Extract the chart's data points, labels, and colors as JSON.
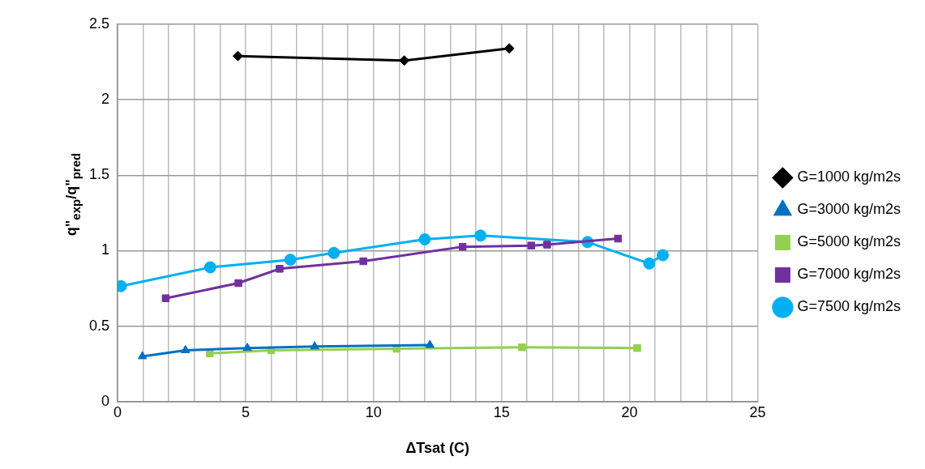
{
  "chart_data": {
    "type": "line",
    "xlabel": "ΔTsat (C)",
    "ylabel": "q\"$_{exp}$/q\"$_{pred}$",
    "xlim": [
      0,
      25
    ],
    "xticks": [
      0,
      {
        "value": 1,
        "label": null
      },
      {
        "value": 2,
        "label": null
      },
      {
        "value": 3,
        "label": null
      },
      {
        "value": 4,
        "label": null
      },
      5,
      {
        "value": 6,
        "label": null
      },
      {
        "value": 7,
        "label": null
      },
      {
        "value": 8,
        "label": null
      },
      {
        "value": 9,
        "label": null
      },
      10,
      {
        "value": 11,
        "label": null
      },
      {
        "value": 12,
        "label": null
      },
      {
        "value": 13,
        "label": null
      },
      {
        "value": 14,
        "label": null
      },
      15,
      {
        "value": 16,
        "label": null
      },
      {
        "value": 17,
        "label": null
      },
      {
        "value": 18,
        "label": null
      },
      {
        "value": 19,
        "label": null
      },
      20,
      {
        "value": 21,
        "label": null
      },
      {
        "value": 22,
        "label": null
      },
      {
        "value": 23,
        "label": null
      },
      {
        "value": 24,
        "label": null
      },
      25
    ],
    "ylim": [
      0,
      2.5
    ],
    "yticks": [
      0,
      0.5,
      1,
      1.5,
      2,
      2.5
    ],
    "grid": true,
    "legend": "right",
    "series": [
      {
        "name": "G=1000 kg/m2s",
        "color": "#000000",
        "marker": "diamond",
        "x": [
          4.7,
          11.2,
          15.3
        ],
        "values": [
          2.29,
          2.26,
          2.34
        ]
      },
      {
        "name": "G=3000 kg/m2s",
        "color": "#0070c0",
        "marker": "triangle",
        "x": [
          0.97,
          2.65,
          5.07,
          7.7,
          12.2
        ],
        "values": [
          0.3,
          0.34,
          0.355,
          0.365,
          0.375
        ]
      },
      {
        "name": "G=5000 kg/m2s",
        "color": "#92d050",
        "marker": "square",
        "x": [
          3.6,
          6.0,
          10.9,
          15.8,
          20.3
        ],
        "values": [
          0.32,
          0.34,
          0.35,
          0.36,
          0.355
        ]
      },
      {
        "name": "G=7000 kg/m2s",
        "color": "#7030a0",
        "marker": "square",
        "x": [
          1.88,
          4.72,
          6.33,
          9.6,
          13.48,
          16.16,
          16.78,
          19.55
        ],
        "values": [
          0.685,
          0.785,
          0.88,
          0.93,
          1.026,
          1.034,
          1.04,
          1.08
        ]
      },
      {
        "name": "G=7500 kg/m2s",
        "color": "#00b0f0",
        "marker": "circle",
        "x": [
          0.13,
          3.62,
          6.75,
          8.45,
          12.0,
          14.18,
          18.36,
          20.77,
          21.3
        ],
        "values": [
          0.765,
          0.89,
          0.94,
          0.985,
          1.075,
          1.1,
          1.057,
          0.915,
          0.97
        ]
      }
    ]
  }
}
